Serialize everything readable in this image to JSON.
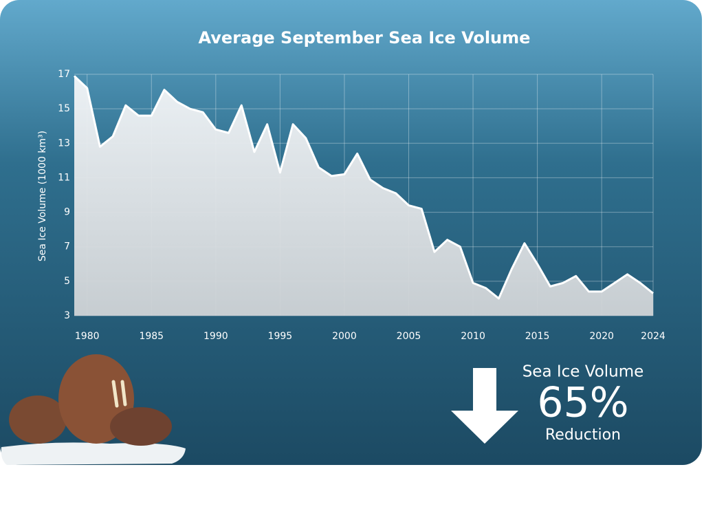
{
  "chart_data": {
    "type": "area",
    "title": "Average September Sea Ice Volume",
    "y_label": "Sea Ice Volume (1000 km³)",
    "x": [
      1979,
      1980,
      1981,
      1982,
      1983,
      1984,
      1985,
      1986,
      1987,
      1988,
      1989,
      1990,
      1991,
      1992,
      1993,
      1994,
      1995,
      1996,
      1997,
      1998,
      1999,
      2000,
      2001,
      2002,
      2003,
      2004,
      2005,
      2006,
      2007,
      2008,
      2009,
      2010,
      2011,
      2012,
      2013,
      2014,
      2015,
      2016,
      2017,
      2018,
      2019,
      2020,
      2021,
      2022,
      2023,
      2024
    ],
    "values": [
      16.9,
      16.2,
      12.8,
      13.4,
      15.2,
      14.6,
      14.6,
      16.1,
      15.4,
      15.0,
      14.8,
      13.8,
      13.6,
      15.2,
      12.5,
      14.1,
      11.3,
      14.1,
      13.3,
      11.6,
      11.1,
      11.2,
      12.4,
      10.9,
      10.4,
      10.1,
      9.4,
      9.2,
      6.7,
      7.4,
      7.0,
      4.9,
      4.6,
      4.0,
      5.7,
      7.2,
      6.0,
      4.7,
      4.9,
      5.3,
      4.4,
      4.4,
      4.9,
      5.4,
      4.9,
      4.3
    ],
    "color": "#e8ebee",
    "xlim": [
      1979,
      2024
    ],
    "xticks": [
      1980,
      1985,
      1990,
      1995,
      2000,
      2005,
      2010,
      2015,
      2020,
      2024
    ],
    "ylim": [
      3,
      17
    ],
    "yticks": [
      3,
      5,
      7,
      9,
      11,
      13,
      15,
      17
    ],
    "grid": true,
    "annotations": {
      "heading": "Sea Ice Volume",
      "percent": "65%",
      "caption": "Reduction"
    }
  }
}
